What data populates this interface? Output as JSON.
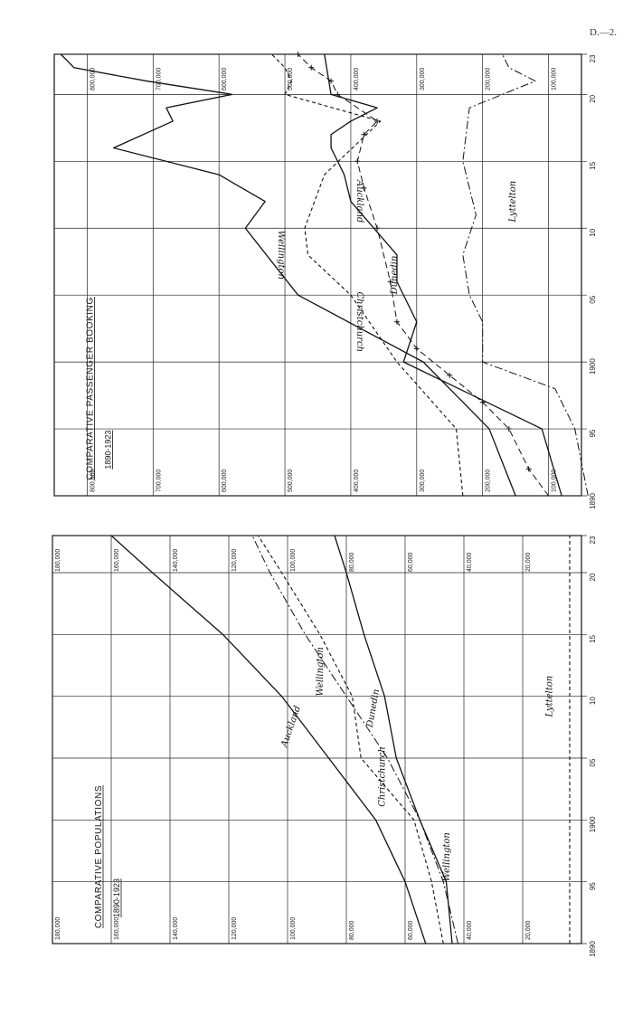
{
  "page_ref": "D.—2.",
  "chart_data": [
    {
      "type": "line",
      "title": "COMPARATIVE POPULATIONS",
      "subtitle": "1890-1923",
      "x": [
        1890,
        1895,
        1900,
        1905,
        1910,
        1915,
        1920,
        1923
      ],
      "x_tick_labels": [
        "1890",
        "95",
        "1900",
        "05",
        "10",
        "15",
        "20",
        "23"
      ],
      "y_tick_values": [
        20000,
        40000,
        60000,
        80000,
        100000,
        120000,
        140000,
        160000,
        180000
      ],
      "y_tick_labels": [
        "20,000",
        "40,000",
        "60,000",
        "80,000",
        "100,000",
        "120,000",
        "140,000",
        "160,000",
        "180,000"
      ],
      "ylim": [
        0,
        180000
      ],
      "grid": true,
      "series": [
        {
          "name": "Auckland",
          "style": "solid",
          "values": [
            53000,
            60000,
            70000,
            86000,
            102000,
            122000,
            146000,
            160000
          ]
        },
        {
          "name": "Christchurch",
          "style": "dashed",
          "values": [
            47000,
            51000,
            57000,
            75000,
            78000,
            89000,
            102000,
            110000
          ]
        },
        {
          "name": "Wellington",
          "style": "dashdot",
          "values": [
            42000,
            47000,
            55000,
            66000,
            80000,
            94000,
            106000,
            112000
          ]
        },
        {
          "name": "Dunedin",
          "style": "solid",
          "values": [
            44000,
            46000,
            55000,
            63000,
            67000,
            74000,
            80000,
            84000
          ]
        },
        {
          "name": "Lyttelton",
          "style": "dashed",
          "values": [
            4000,
            4000,
            4000,
            4000,
            4000,
            4000,
            4000,
            4000
          ]
        }
      ]
    },
    {
      "type": "line",
      "title": "COMPARATIVE PASSENGER BOOKING",
      "subtitle": "1890-1923",
      "x_tick_labels": [
        "1890",
        "95",
        "1900",
        "05",
        "10",
        "15",
        "20",
        "23"
      ],
      "y_tick_values": [
        100000,
        200000,
        300000,
        400000,
        500000,
        600000,
        700000,
        800000
      ],
      "y_tick_labels": [
        "100,000",
        "200,000",
        "300,000",
        "400,000",
        "500,000",
        "600,000",
        "700,000",
        "800,000"
      ],
      "ylim": [
        50000,
        850000
      ],
      "grid": true,
      "series": [
        {
          "name": "Wellington",
          "style": "solid",
          "x": [
            1890,
            1895,
            1900,
            1905,
            1910,
            1912,
            1914,
            1916,
            1918,
            1919,
            1920,
            1921,
            1922,
            1923
          ],
          "values": [
            150000,
            190000,
            290000,
            480000,
            560000,
            530000,
            600000,
            760000,
            670000,
            680000,
            580000,
            710000,
            820000,
            840000
          ]
        },
        {
          "name": "Christchurch",
          "style": "dashed",
          "x": [
            1890,
            1895,
            1900,
            1905,
            1908,
            1910,
            1914,
            1918,
            1920,
            1921,
            1922,
            1923
          ],
          "values": [
            230000,
            240000,
            330000,
            400000,
            465000,
            470000,
            440000,
            355000,
            500000,
            490000,
            500000,
            520000
          ]
        },
        {
          "name": "Dunedin",
          "style": "dashcross",
          "x": [
            1890,
            1892,
            1895,
            1897,
            1899,
            1901,
            1903,
            1906,
            1910,
            1913,
            1915,
            1917,
            1918,
            1920,
            1921,
            1922,
            1923
          ],
          "values": [
            100000,
            130000,
            160000,
            200000,
            250000,
            300000,
            330000,
            340000,
            360000,
            380000,
            390000,
            380000,
            360000,
            420000,
            430000,
            460000,
            480000
          ]
        },
        {
          "name": "Auckland",
          "style": "solid",
          "x": [
            1890,
            1895,
            1900,
            1903,
            1906,
            1908,
            1912,
            1914,
            1916,
            1917,
            1918,
            1919,
            1920,
            1923
          ],
          "values": [
            80000,
            110000,
            320000,
            300000,
            330000,
            330000,
            400000,
            410000,
            430000,
            430000,
            400000,
            360000,
            430000,
            440000
          ]
        },
        {
          "name": "Lyttelton",
          "style": "dashdot",
          "x": [
            1890,
            1895,
            1898,
            1900,
            1903,
            1905,
            1908,
            1911,
            1915,
            1919,
            1921,
            1922,
            1923
          ],
          "values": [
            40000,
            60000,
            90000,
            200000,
            200000,
            220000,
            230000,
            210000,
            230000,
            220000,
            120000,
            160000,
            170000
          ]
        }
      ]
    }
  ]
}
